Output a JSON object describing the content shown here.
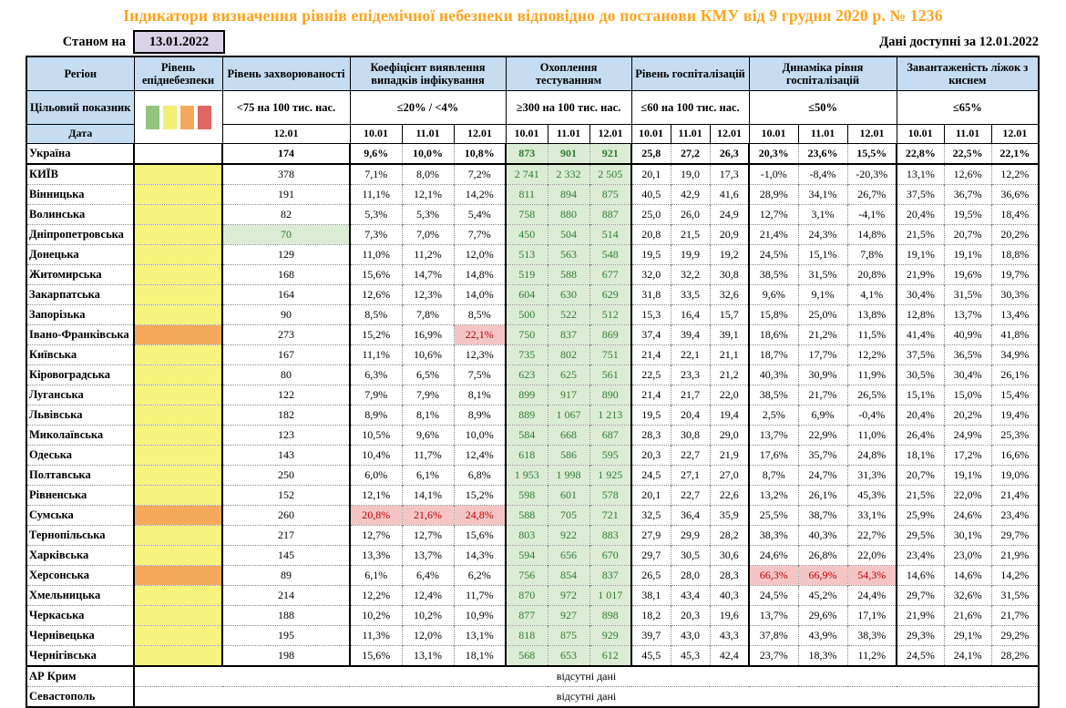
{
  "title": "Індикатори визначення рівнів епідемічної небезпеки відповідно до постанови КМУ від 9 грудня 2020 р. № 1236",
  "as_of": {
    "label": "Станом на",
    "date": "13.01.2022"
  },
  "available": {
    "label": "Дані доступні за 12.01.2022"
  },
  "header": {
    "region": "Регіон",
    "target_label": "Цільовий показник",
    "date_label": "Дата",
    "level_title": "Рівень епіднебезпеки",
    "level_swatches": [
      "#93C47D",
      "#F3EF72",
      "#F4A95B",
      "#E06666"
    ],
    "level_swatch_names": [
      "green-level",
      "yellow-level",
      "orange-level",
      "red-level"
    ],
    "groups": [
      {
        "title": "Рівень захворюваності",
        "target": "<75 на 100 тис. нас.",
        "dates": [
          "12.01"
        ]
      },
      {
        "title": "Коефіцієнт виявлення випадків інфікування",
        "target": "≤20% / <4%",
        "dates": [
          "10.01",
          "11.01",
          "12.01"
        ]
      },
      {
        "title": "Охоплення тестуванням",
        "target": "≥300 на 100 тис. нас.",
        "dates": [
          "10.01",
          "11.01",
          "12.01"
        ]
      },
      {
        "title": "Рівень госпіталізацій",
        "target": "≤60 на 100 тис. нас.",
        "dates": [
          "10.01",
          "11.01",
          "12.01"
        ]
      },
      {
        "title": "Динаміка рівня госпіталізацій",
        "target": "≤50%",
        "dates": [
          "10.01",
          "11.01",
          "12.01"
        ]
      },
      {
        "title": "Завантаженість ліжок з киснем",
        "target": "≤65%",
        "dates": [
          "10.01",
          "11.01",
          "12.01"
        ]
      }
    ]
  },
  "colors": {
    "title_orange": "#FFA31C",
    "header_blue": "#C6DCF0",
    "asof_lavender": "#DAD3E7",
    "level_yellow": "#F6F47D",
    "level_orange": "#F4A95B",
    "ok_green_bg": "#DCEBD5",
    "ok_green_text": "#2E7D32",
    "alert_red_bg": "#F5C5C5",
    "alert_red_text": "#C00000"
  },
  "table": {
    "rows": [
      {
        "region": "Україна",
        "level": null,
        "bold": true,
        "incidence": "174",
        "incidence_hl": null,
        "detection": [
          "9,6%",
          "10,0%",
          "10,8%"
        ],
        "detection_hl": [],
        "testing": [
          "873",
          "901",
          "921"
        ],
        "hosp": [
          "25,8",
          "27,2",
          "26,3"
        ],
        "dynamics": [
          "20,3%",
          "23,6%",
          "15,5%"
        ],
        "dynamics_hl": [],
        "beds": [
          "22,8%",
          "22,5%",
          "22,1%"
        ]
      },
      {
        "region": "КИЇВ",
        "level": "yellow",
        "bold": false,
        "incidence": "378",
        "incidence_hl": null,
        "detection": [
          "7,1%",
          "8,0%",
          "7,2%"
        ],
        "detection_hl": [],
        "testing": [
          "2 741",
          "2 332",
          "2 505"
        ],
        "hosp": [
          "20,1",
          "19,0",
          "17,3"
        ],
        "dynamics": [
          "-1,0%",
          "-8,4%",
          "-20,3%"
        ],
        "dynamics_hl": [],
        "beds": [
          "13,1%",
          "12,6%",
          "12,2%"
        ]
      },
      {
        "region": "Вінницька",
        "level": "yellow",
        "bold": false,
        "incidence": "191",
        "incidence_hl": null,
        "detection": [
          "11,1%",
          "12,1%",
          "14,2%"
        ],
        "detection_hl": [],
        "testing": [
          "811",
          "894",
          "875"
        ],
        "hosp": [
          "40,5",
          "42,9",
          "41,6"
        ],
        "dynamics": [
          "28,9%",
          "34,1%",
          "26,7%"
        ],
        "dynamics_hl": [],
        "beds": [
          "37,5%",
          "36,7%",
          "36,6%"
        ]
      },
      {
        "region": "Волинська",
        "level": "yellow",
        "bold": false,
        "incidence": "82",
        "incidence_hl": null,
        "detection": [
          "5,3%",
          "5,3%",
          "5,4%"
        ],
        "detection_hl": [],
        "testing": [
          "758",
          "880",
          "887"
        ],
        "hosp": [
          "25,0",
          "26,0",
          "24,9"
        ],
        "dynamics": [
          "12,7%",
          "3,1%",
          "-4,1%"
        ],
        "dynamics_hl": [],
        "beds": [
          "20,4%",
          "19,5%",
          "18,4%"
        ]
      },
      {
        "region": "Дніпропетровська",
        "level": "yellow",
        "bold": false,
        "incidence": "70",
        "incidence_hl": "green",
        "detection": [
          "7,3%",
          "7,0%",
          "7,7%"
        ],
        "detection_hl": [],
        "testing": [
          "450",
          "504",
          "514"
        ],
        "hosp": [
          "20,8",
          "21,5",
          "20,9"
        ],
        "dynamics": [
          "21,4%",
          "24,3%",
          "14,8%"
        ],
        "dynamics_hl": [],
        "beds": [
          "21,5%",
          "20,7%",
          "20,2%"
        ]
      },
      {
        "region": "Донецька",
        "level": "yellow",
        "bold": false,
        "incidence": "129",
        "incidence_hl": null,
        "detection": [
          "11,0%",
          "11,2%",
          "12,0%"
        ],
        "detection_hl": [],
        "testing": [
          "513",
          "563",
          "548"
        ],
        "hosp": [
          "19,5",
          "19,9",
          "19,2"
        ],
        "dynamics": [
          "24,5%",
          "15,1%",
          "7,8%"
        ],
        "dynamics_hl": [],
        "beds": [
          "19,1%",
          "19,1%",
          "18,8%"
        ]
      },
      {
        "region": "Житомирська",
        "level": "yellow",
        "bold": false,
        "incidence": "168",
        "incidence_hl": null,
        "detection": [
          "15,6%",
          "14,7%",
          "14,8%"
        ],
        "detection_hl": [],
        "testing": [
          "519",
          "588",
          "677"
        ],
        "hosp": [
          "32,0",
          "32,2",
          "30,8"
        ],
        "dynamics": [
          "38,5%",
          "31,5%",
          "20,8%"
        ],
        "dynamics_hl": [],
        "beds": [
          "21,9%",
          "19,6%",
          "19,7%"
        ]
      },
      {
        "region": "Закарпатська",
        "level": "yellow",
        "bold": false,
        "incidence": "164",
        "incidence_hl": null,
        "detection": [
          "12,6%",
          "12,3%",
          "14,0%"
        ],
        "detection_hl": [],
        "testing": [
          "604",
          "630",
          "629"
        ],
        "hosp": [
          "31,8",
          "33,5",
          "32,6"
        ],
        "dynamics": [
          "9,6%",
          "9,1%",
          "4,1%"
        ],
        "dynamics_hl": [],
        "beds": [
          "30,4%",
          "31,5%",
          "30,3%"
        ]
      },
      {
        "region": "Запорізька",
        "level": "yellow",
        "bold": false,
        "incidence": "90",
        "incidence_hl": null,
        "detection": [
          "8,5%",
          "7,8%",
          "8,5%"
        ],
        "detection_hl": [],
        "testing": [
          "500",
          "522",
          "512"
        ],
        "hosp": [
          "15,3",
          "16,4",
          "15,7"
        ],
        "dynamics": [
          "15,8%",
          "25,0%",
          "13,8%"
        ],
        "dynamics_hl": [],
        "beds": [
          "12,8%",
          "13,7%",
          "13,4%"
        ]
      },
      {
        "region": "Івано-Франківська",
        "level": "orange",
        "bold": false,
        "incidence": "273",
        "incidence_hl": null,
        "detection": [
          "15,2%",
          "16,9%",
          "22,1%"
        ],
        "detection_hl": [
          2
        ],
        "testing": [
          "750",
          "837",
          "869"
        ],
        "hosp": [
          "37,4",
          "39,4",
          "39,1"
        ],
        "dynamics": [
          "18,6%",
          "21,2%",
          "11,5%"
        ],
        "dynamics_hl": [],
        "beds": [
          "41,4%",
          "40,9%",
          "41,8%"
        ]
      },
      {
        "region": "Київська",
        "level": "yellow",
        "bold": false,
        "incidence": "167",
        "incidence_hl": null,
        "detection": [
          "11,1%",
          "10,6%",
          "12,3%"
        ],
        "detection_hl": [],
        "testing": [
          "735",
          "802",
          "751"
        ],
        "hosp": [
          "21,4",
          "22,1",
          "21,1"
        ],
        "dynamics": [
          "18,7%",
          "17,7%",
          "12,2%"
        ],
        "dynamics_hl": [],
        "beds": [
          "37,5%",
          "36,5%",
          "34,9%"
        ]
      },
      {
        "region": "Кіровоградська",
        "level": "yellow",
        "bold": false,
        "incidence": "80",
        "incidence_hl": null,
        "detection": [
          "6,3%",
          "6,5%",
          "7,5%"
        ],
        "detection_hl": [],
        "testing": [
          "623",
          "625",
          "561"
        ],
        "hosp": [
          "22,5",
          "23,3",
          "21,2"
        ],
        "dynamics": [
          "40,3%",
          "30,9%",
          "11,9%"
        ],
        "dynamics_hl": [],
        "beds": [
          "30,5%",
          "30,4%",
          "26,1%"
        ]
      },
      {
        "region": "Луганська",
        "level": "yellow",
        "bold": false,
        "incidence": "122",
        "incidence_hl": null,
        "detection": [
          "7,9%",
          "7,9%",
          "8,1%"
        ],
        "detection_hl": [],
        "testing": [
          "899",
          "917",
          "890"
        ],
        "hosp": [
          "21,4",
          "21,7",
          "22,0"
        ],
        "dynamics": [
          "38,5%",
          "21,7%",
          "26,5%"
        ],
        "dynamics_hl": [],
        "beds": [
          "15,1%",
          "15,0%",
          "15,4%"
        ]
      },
      {
        "region": "Львівська",
        "level": "yellow",
        "bold": false,
        "incidence": "182",
        "incidence_hl": null,
        "detection": [
          "8,9%",
          "8,1%",
          "8,9%"
        ],
        "detection_hl": [],
        "testing": [
          "889",
          "1 067",
          "1 213"
        ],
        "hosp": [
          "19,5",
          "20,4",
          "19,4"
        ],
        "dynamics": [
          "2,5%",
          "6,9%",
          "-0,4%"
        ],
        "dynamics_hl": [],
        "beds": [
          "20,4%",
          "20,2%",
          "19,4%"
        ]
      },
      {
        "region": "Миколаївська",
        "level": "yellow",
        "bold": false,
        "incidence": "123",
        "incidence_hl": null,
        "detection": [
          "10,5%",
          "9,6%",
          "10,0%"
        ],
        "detection_hl": [],
        "testing": [
          "584",
          "668",
          "687"
        ],
        "hosp": [
          "28,3",
          "30,8",
          "29,0"
        ],
        "dynamics": [
          "13,7%",
          "22,9%",
          "11,0%"
        ],
        "dynamics_hl": [],
        "beds": [
          "26,4%",
          "24,9%",
          "25,3%"
        ]
      },
      {
        "region": "Одеська",
        "level": "yellow",
        "bold": false,
        "incidence": "143",
        "incidence_hl": null,
        "detection": [
          "10,4%",
          "11,7%",
          "12,4%"
        ],
        "detection_hl": [],
        "testing": [
          "618",
          "586",
          "595"
        ],
        "hosp": [
          "20,3",
          "22,7",
          "21,9"
        ],
        "dynamics": [
          "17,6%",
          "35,7%",
          "24,8%"
        ],
        "dynamics_hl": [],
        "beds": [
          "18,1%",
          "17,2%",
          "16,6%"
        ]
      },
      {
        "region": "Полтавська",
        "level": "yellow",
        "bold": false,
        "incidence": "250",
        "incidence_hl": null,
        "detection": [
          "6,0%",
          "6,1%",
          "6,8%"
        ],
        "detection_hl": [],
        "testing": [
          "1 953",
          "1 998",
          "1 925"
        ],
        "hosp": [
          "24,5",
          "27,1",
          "27,0"
        ],
        "dynamics": [
          "8,7%",
          "24,7%",
          "31,3%"
        ],
        "dynamics_hl": [],
        "beds": [
          "20,7%",
          "19,1%",
          "19,0%"
        ]
      },
      {
        "region": "Рівненська",
        "level": "yellow",
        "bold": false,
        "incidence": "152",
        "incidence_hl": null,
        "detection": [
          "12,1%",
          "14,1%",
          "15,2%"
        ],
        "detection_hl": [],
        "testing": [
          "598",
          "601",
          "578"
        ],
        "hosp": [
          "20,1",
          "22,7",
          "22,6"
        ],
        "dynamics": [
          "13,2%",
          "26,1%",
          "45,3%"
        ],
        "dynamics_hl": [],
        "beds": [
          "21,5%",
          "22,0%",
          "21,4%"
        ]
      },
      {
        "region": "Сумська",
        "level": "orange",
        "bold": false,
        "incidence": "260",
        "incidence_hl": null,
        "detection": [
          "20,8%",
          "21,6%",
          "24,8%"
        ],
        "detection_hl": [
          0,
          1,
          2
        ],
        "testing": [
          "588",
          "705",
          "721"
        ],
        "hosp": [
          "32,5",
          "36,4",
          "35,9"
        ],
        "dynamics": [
          "25,5%",
          "38,7%",
          "33,1%"
        ],
        "dynamics_hl": [],
        "beds": [
          "25,9%",
          "24,6%",
          "23,4%"
        ]
      },
      {
        "region": "Тернопільська",
        "level": "yellow",
        "bold": false,
        "incidence": "217",
        "incidence_hl": null,
        "detection": [
          "12,7%",
          "12,7%",
          "15,6%"
        ],
        "detection_hl": [],
        "testing": [
          "803",
          "922",
          "883"
        ],
        "hosp": [
          "27,9",
          "29,9",
          "28,2"
        ],
        "dynamics": [
          "38,3%",
          "40,3%",
          "22,7%"
        ],
        "dynamics_hl": [],
        "beds": [
          "29,5%",
          "30,1%",
          "29,7%"
        ]
      },
      {
        "region": "Харківська",
        "level": "yellow",
        "bold": false,
        "incidence": "145",
        "incidence_hl": null,
        "detection": [
          "13,3%",
          "13,7%",
          "14,3%"
        ],
        "detection_hl": [],
        "testing": [
          "594",
          "656",
          "670"
        ],
        "hosp": [
          "29,7",
          "30,5",
          "30,6"
        ],
        "dynamics": [
          "24,6%",
          "26,8%",
          "22,0%"
        ],
        "dynamics_hl": [],
        "beds": [
          "23,4%",
          "23,0%",
          "21,9%"
        ]
      },
      {
        "region": "Херсонська",
        "level": "orange",
        "bold": false,
        "incidence": "89",
        "incidence_hl": null,
        "detection": [
          "6,1%",
          "6,4%",
          "6,2%"
        ],
        "detection_hl": [],
        "testing": [
          "756",
          "854",
          "837"
        ],
        "hosp": [
          "26,5",
          "28,0",
          "28,3"
        ],
        "dynamics": [
          "66,3%",
          "66,9%",
          "54,3%"
        ],
        "dynamics_hl": [
          0,
          1,
          2
        ],
        "beds": [
          "14,6%",
          "14,6%",
          "14,2%"
        ]
      },
      {
        "region": "Хмельницька",
        "level": "yellow",
        "bold": false,
        "incidence": "214",
        "incidence_hl": null,
        "detection": [
          "12,2%",
          "12,4%",
          "11,7%"
        ],
        "detection_hl": [],
        "testing": [
          "870",
          "972",
          "1 017"
        ],
        "hosp": [
          "38,1",
          "43,4",
          "40,3"
        ],
        "dynamics": [
          "24,5%",
          "45,2%",
          "24,4%"
        ],
        "dynamics_hl": [],
        "beds": [
          "29,7%",
          "32,6%",
          "31,5%"
        ]
      },
      {
        "region": "Черкаська",
        "level": "yellow",
        "bold": false,
        "incidence": "188",
        "incidence_hl": null,
        "detection": [
          "10,2%",
          "10,2%",
          "10,9%"
        ],
        "detection_hl": [],
        "testing": [
          "877",
          "927",
          "898"
        ],
        "hosp": [
          "18,2",
          "20,3",
          "19,6"
        ],
        "dynamics": [
          "13,7%",
          "29,6%",
          "17,1%"
        ],
        "dynamics_hl": [],
        "beds": [
          "21,9%",
          "21,6%",
          "21,7%"
        ]
      },
      {
        "region": "Чернівецька",
        "level": "yellow",
        "bold": false,
        "incidence": "195",
        "incidence_hl": null,
        "detection": [
          "11,3%",
          "12,0%",
          "13,1%"
        ],
        "detection_hl": [],
        "testing": [
          "818",
          "875",
          "929"
        ],
        "hosp": [
          "39,7",
          "43,0",
          "43,3"
        ],
        "dynamics": [
          "37,8%",
          "43,9%",
          "38,3%"
        ],
        "dynamics_hl": [],
        "beds": [
          "29,3%",
          "29,1%",
          "29,2%"
        ]
      },
      {
        "region": "Чернігівська",
        "level": "yellow",
        "bold": false,
        "incidence": "198",
        "incidence_hl": null,
        "detection": [
          "15,6%",
          "13,1%",
          "18,1%"
        ],
        "detection_hl": [],
        "testing": [
          "568",
          "653",
          "612"
        ],
        "hosp": [
          "45,5",
          "45,3",
          "42,4"
        ],
        "dynamics": [
          "23,7%",
          "18,3%",
          "11,2%"
        ],
        "dynamics_hl": [],
        "beds": [
          "24,5%",
          "24,1%",
          "28,2%"
        ]
      }
    ],
    "no_data_rows": [
      {
        "region": "АР Крим",
        "text": "відсутні дані"
      },
      {
        "region": "Севастополь",
        "text": "відсутні дані"
      }
    ]
  }
}
